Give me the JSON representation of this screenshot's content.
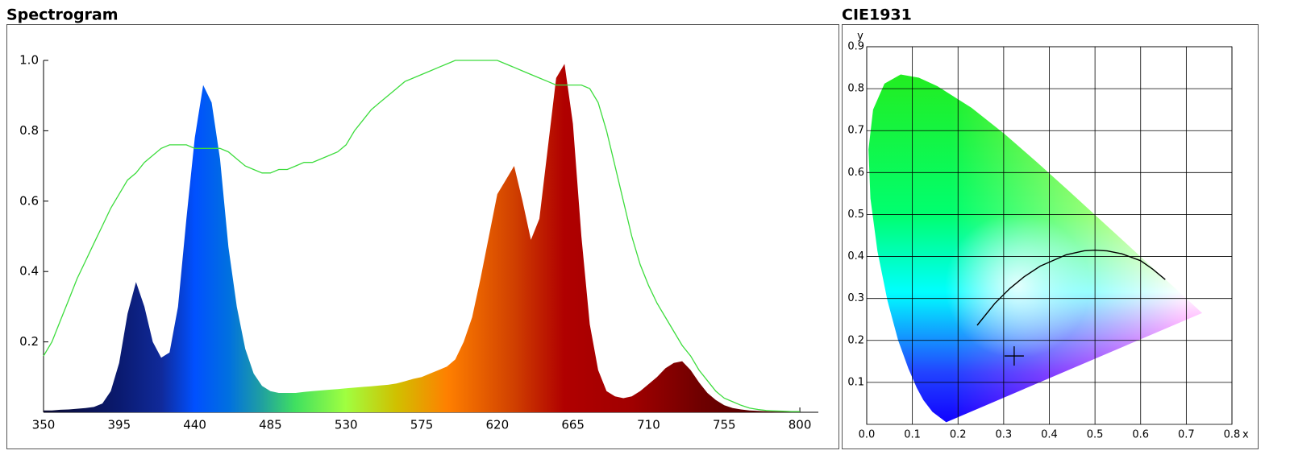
{
  "chart_data": [
    {
      "type": "spectrum",
      "title": "Spectrogram",
      "x": [
        350,
        355,
        360,
        365,
        370,
        375,
        380,
        385,
        390,
        395,
        400,
        405,
        410,
        415,
        420,
        425,
        430,
        435,
        440,
        445,
        450,
        455,
        460,
        465,
        470,
        475,
        480,
        485,
        490,
        495,
        500,
        505,
        510,
        515,
        520,
        525,
        530,
        535,
        540,
        545,
        550,
        555,
        560,
        565,
        570,
        575,
        580,
        585,
        590,
        595,
        600,
        605,
        610,
        615,
        620,
        625,
        630,
        635,
        640,
        645,
        650,
        655,
        660,
        665,
        670,
        675,
        680,
        685,
        690,
        695,
        700,
        705,
        710,
        715,
        720,
        725,
        730,
        735,
        740,
        745,
        750,
        755,
        760,
        765,
        770,
        775,
        780,
        785,
        790,
        795,
        800
      ],
      "series": [
        {
          "style": "area",
          "values": [
            0.005,
            0.005,
            0.007,
            0.008,
            0.01,
            0.012,
            0.015,
            0.025,
            0.06,
            0.14,
            0.28,
            0.37,
            0.3,
            0.2,
            0.155,
            0.17,
            0.3,
            0.55,
            0.78,
            0.93,
            0.88,
            0.72,
            0.47,
            0.3,
            0.18,
            0.11,
            0.075,
            0.06,
            0.055,
            0.055,
            0.055,
            0.058,
            0.06,
            0.062,
            0.064,
            0.066,
            0.068,
            0.07,
            0.072,
            0.074,
            0.076,
            0.078,
            0.082,
            0.088,
            0.095,
            0.1,
            0.11,
            0.12,
            0.13,
            0.15,
            0.2,
            0.27,
            0.38,
            0.5,
            0.62,
            0.66,
            0.7,
            0.6,
            0.49,
            0.55,
            0.75,
            0.95,
            0.99,
            0.82,
            0.5,
            0.25,
            0.12,
            0.06,
            0.045,
            0.04,
            0.045,
            0.06,
            0.08,
            0.1,
            0.125,
            0.14,
            0.145,
            0.12,
            0.085,
            0.055,
            0.035,
            0.02,
            0.012,
            0.008,
            0.005,
            0.004,
            0.003,
            0.002,
            0.002,
            0.001,
            0.001
          ]
        },
        {
          "style": "line",
          "color": "#3ddc3d",
          "values": [
            0.16,
            0.2,
            0.26,
            0.32,
            0.38,
            0.43,
            0.48,
            0.53,
            0.58,
            0.62,
            0.66,
            0.68,
            0.71,
            0.73,
            0.75,
            0.76,
            0.76,
            0.76,
            0.75,
            0.75,
            0.75,
            0.75,
            0.74,
            0.72,
            0.7,
            0.69,
            0.68,
            0.68,
            0.69,
            0.69,
            0.7,
            0.71,
            0.71,
            0.72,
            0.73,
            0.74,
            0.76,
            0.8,
            0.83,
            0.86,
            0.88,
            0.9,
            0.92,
            0.94,
            0.95,
            0.96,
            0.97,
            0.98,
            0.99,
            1.0,
            1.0,
            1.0,
            1.0,
            1.0,
            1.0,
            0.99,
            0.98,
            0.97,
            0.96,
            0.95,
            0.94,
            0.93,
            0.93,
            0.93,
            0.93,
            0.92,
            0.88,
            0.8,
            0.7,
            0.6,
            0.5,
            0.42,
            0.36,
            0.31,
            0.27,
            0.23,
            0.19,
            0.16,
            0.12,
            0.09,
            0.06,
            0.04,
            0.03,
            0.02,
            0.012,
            0.008,
            0.005,
            0.004,
            0.003,
            0.002,
            0.002
          ]
        }
      ],
      "xlim": [
        350,
        811
      ],
      "xticks": [
        350,
        395,
        440,
        485,
        530,
        575,
        620,
        665,
        710,
        755,
        800
      ],
      "ylim": [
        0,
        1
      ],
      "yticks": [
        0.2,
        0.4,
        0.6,
        0.8,
        {
          "value": 1,
          "label": "1.0"
        }
      ]
    },
    {
      "type": "chromaticity",
      "title": "CIE1931",
      "x_label": "x",
      "y_label": "y",
      "xlim": [
        0,
        0.8
      ],
      "xticks": [
        {
          "value": 0,
          "label": "0.0"
        },
        0.1,
        0.2,
        0.3,
        0.4,
        0.5,
        0.6,
        0.7,
        0.8
      ],
      "ylim": [
        0,
        0.9
      ],
      "yticks": [
        0.1,
        0.2,
        0.3,
        0.4,
        0.5,
        0.6,
        0.7,
        0.8,
        0.9
      ],
      "spectral_locus": {
        "x": [
          0.1741,
          0.144,
          0.1241,
          0.1096,
          0.0913,
          0.0687,
          0.0454,
          0.0235,
          0.0082,
          0.0039,
          0.0139,
          0.0389,
          0.0743,
          0.1142,
          0.1547,
          0.2296,
          0.3016,
          0.3731,
          0.4441,
          0.5125,
          0.5752,
          0.627,
          0.6915,
          0.719,
          0.7347
        ],
        "y": [
          0.005,
          0.0297,
          0.0578,
          0.0868,
          0.1327,
          0.2007,
          0.295,
          0.4127,
          0.5384,
          0.6548,
          0.7502,
          0.812,
          0.8338,
          0.8262,
          0.8059,
          0.7543,
          0.6923,
          0.6245,
          0.5547,
          0.4866,
          0.4242,
          0.3725,
          0.3083,
          0.2809,
          0.2653
        ]
      },
      "planckian_locus": {
        "x": [
          0.242,
          0.2806,
          0.3135,
          0.3446,
          0.38,
          0.4369,
          0.4764,
          0.5,
          0.5267,
          0.5588,
          0.6,
          0.6262,
          0.654
        ],
        "y": [
          0.236,
          0.2883,
          0.3237,
          0.3516,
          0.377,
          0.4041,
          0.4137,
          0.415,
          0.4133,
          0.4064,
          0.39,
          0.3699,
          0.345
        ]
      },
      "point": {
        "x": 0.323,
        "y": 0.163
      }
    }
  ]
}
